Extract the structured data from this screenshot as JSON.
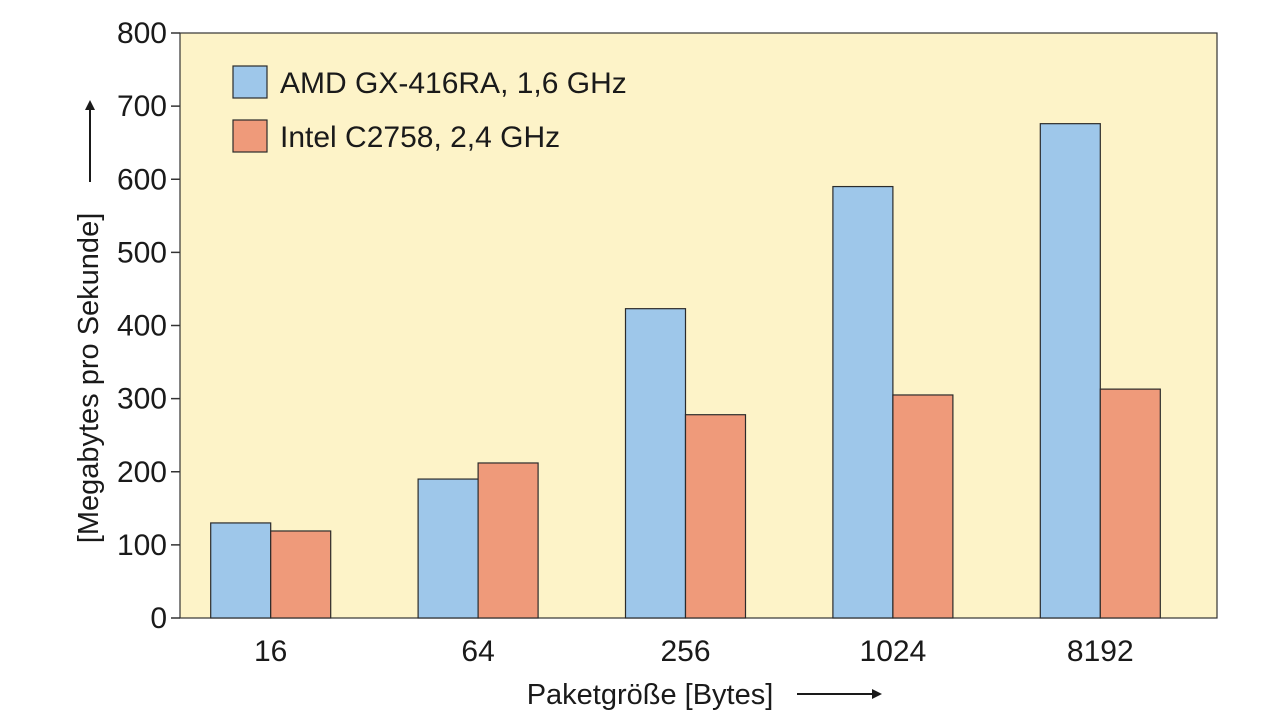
{
  "chart_data": {
    "type": "bar",
    "title": "",
    "xlabel": "Paketgröße [Bytes]",
    "ylabel": "[Megabytes pro Sekunde]",
    "categories": [
      "16",
      "64",
      "256",
      "1024",
      "8192"
    ],
    "ylim": [
      0,
      800
    ],
    "yticks": [
      0,
      100,
      200,
      300,
      400,
      500,
      600,
      700,
      800
    ],
    "grid": false,
    "legend_position": "top-left",
    "series": [
      {
        "name": "AMD GX-416RA, 1,6 GHz",
        "color": "#9ec7ea",
        "values": [
          130,
          190,
          423,
          590,
          676
        ]
      },
      {
        "name": "Intel C2758, 2,4 GHz",
        "color": "#ef9a7a",
        "values": [
          119,
          212,
          278,
          305,
          313
        ]
      }
    ]
  },
  "colors": {
    "plot_background": "#fdf3c8",
    "axis": "#333333",
    "bar_outline": "#2b2b2b"
  }
}
